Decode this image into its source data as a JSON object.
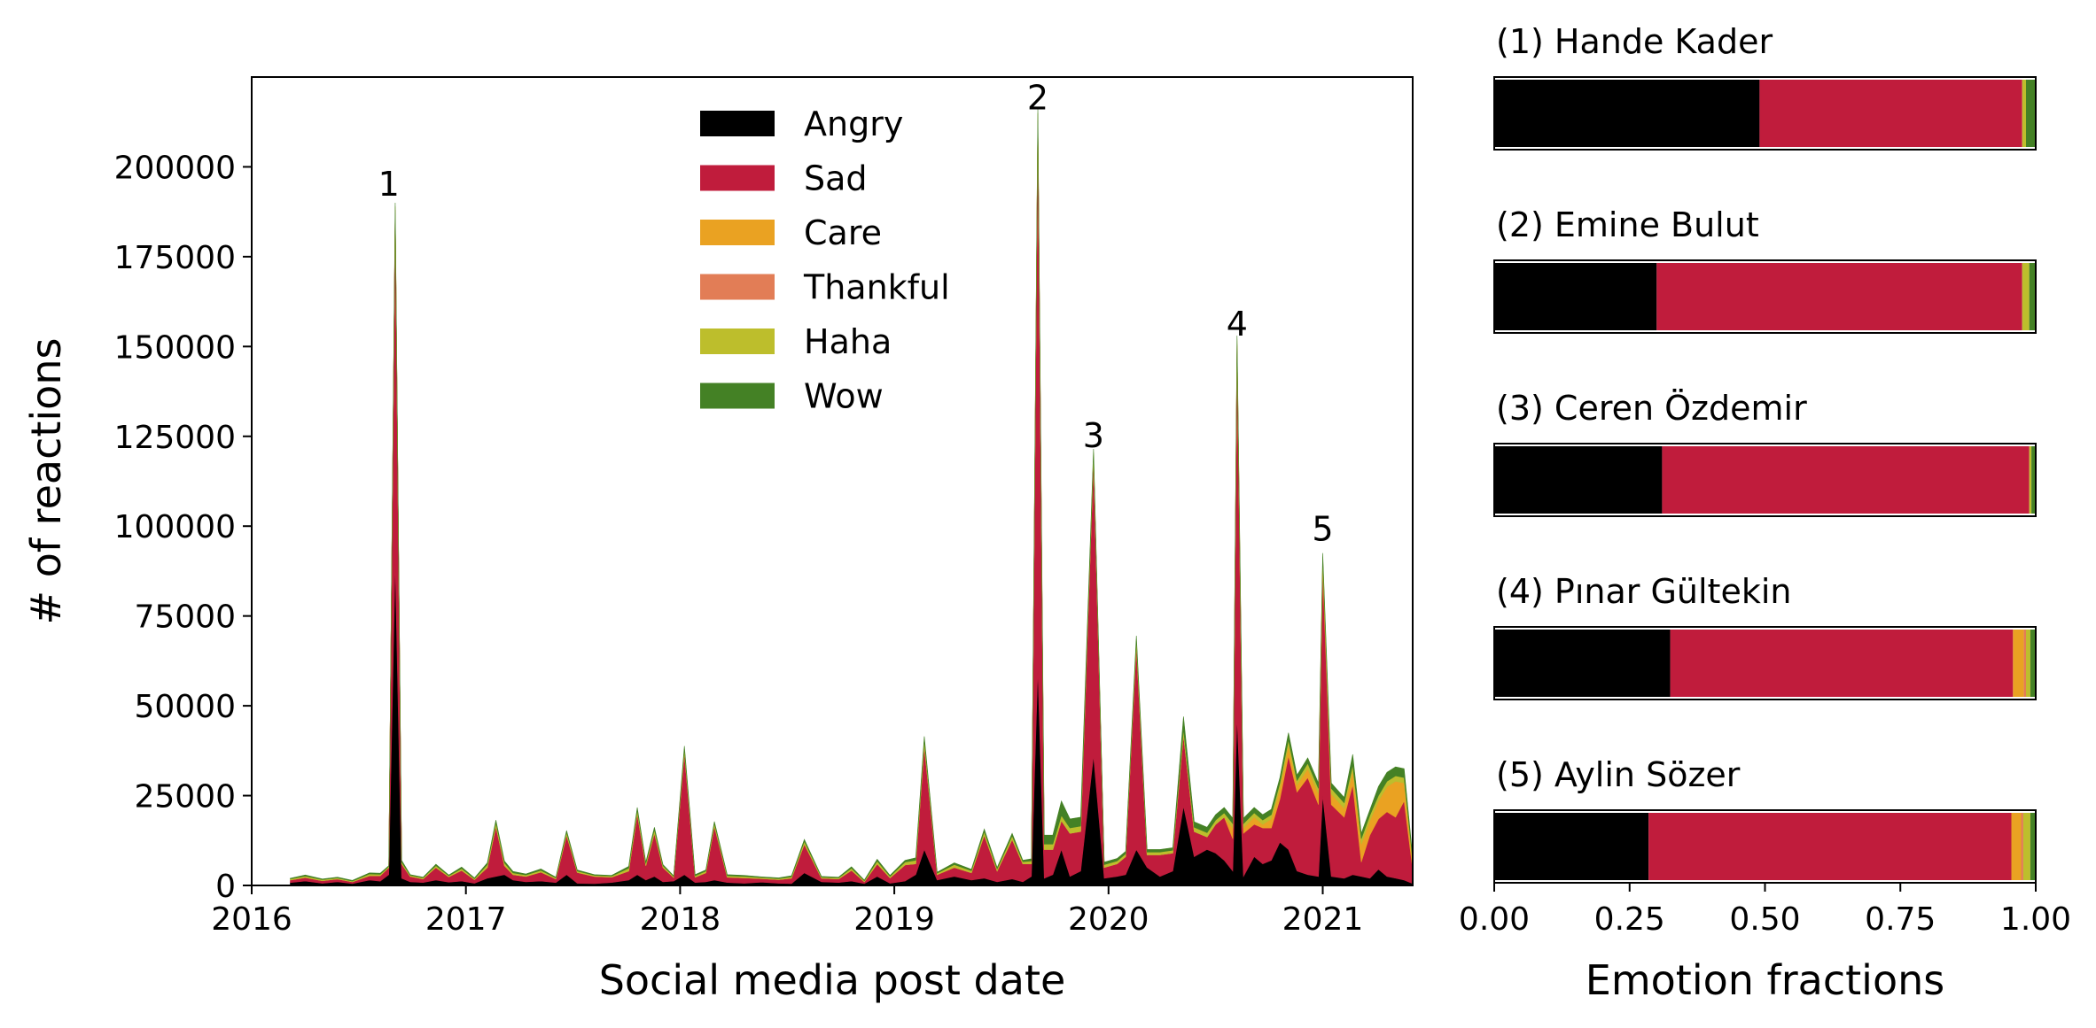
{
  "colors": {
    "Angry": "#000000",
    "Sad": "#c01c3c",
    "Care": "#eaa222",
    "Thankful": "#e27d56",
    "Haha": "#bdbe2c",
    "Wow": "#448125"
  },
  "chart_data": [
    {
      "type": "area",
      "stacked": true,
      "xlabel": "Social media post date",
      "ylabel": "# of reactions",
      "xlim": [
        2016.0,
        2021.42
      ],
      "ylim": [
        0,
        225000
      ],
      "xticks": [
        2016,
        2017,
        2018,
        2019,
        2020,
        2021
      ],
      "xtick_labels": [
        "2016",
        "2017",
        "2018",
        "2019",
        "2020",
        "2021"
      ],
      "yticks": [
        0,
        25000,
        50000,
        75000,
        100000,
        125000,
        150000,
        175000,
        200000
      ],
      "ytick_labels": [
        "0",
        "25000",
        "50000",
        "75000",
        "100000",
        "125000",
        "150000",
        "175000",
        "200000"
      ],
      "legend_position": "upper center",
      "series_order": [
        "Angry",
        "Sad",
        "Care",
        "Thankful",
        "Haha",
        "Wow"
      ],
      "x": [
        2016.18,
        2016.25,
        2016.33,
        2016.4,
        2016.47,
        2016.55,
        2016.6,
        2016.64,
        2016.67,
        2016.7,
        2016.74,
        2016.8,
        2016.86,
        2016.92,
        2016.98,
        2017.04,
        2017.1,
        2017.14,
        2017.18,
        2017.22,
        2017.28,
        2017.35,
        2017.42,
        2017.47,
        2017.52,
        2017.6,
        2017.68,
        2017.76,
        2017.8,
        2017.84,
        2017.88,
        2017.92,
        2017.97,
        2018.02,
        2018.07,
        2018.12,
        2018.16,
        2018.22,
        2018.3,
        2018.38,
        2018.46,
        2018.52,
        2018.58,
        2018.66,
        2018.74,
        2018.8,
        2018.86,
        2018.92,
        2018.98,
        2019.05,
        2019.1,
        2019.14,
        2019.2,
        2019.28,
        2019.36,
        2019.42,
        2019.48,
        2019.55,
        2019.6,
        2019.64,
        2019.67,
        2019.7,
        2019.74,
        2019.78,
        2019.82,
        2019.87,
        2019.93,
        2019.98,
        2020.04,
        2020.08,
        2020.13,
        2020.18,
        2020.24,
        2020.3,
        2020.35,
        2020.4,
        2020.46,
        2020.5,
        2020.54,
        2020.58,
        2020.6,
        2020.63,
        2020.68,
        2020.72,
        2020.76,
        2020.8,
        2020.84,
        2020.88,
        2020.93,
        2020.98,
        2021.0,
        2021.04,
        2021.1,
        2021.14,
        2021.18,
        2021.22,
        2021.26,
        2021.3,
        2021.34,
        2021.38,
        2021.42
      ],
      "series": [
        {
          "name": "Angry",
          "values": [
            800,
            1200,
            600,
            1000,
            500,
            1500,
            1200,
            3000,
            90000,
            2000,
            1000,
            800,
            1500,
            900,
            1200,
            600,
            2000,
            2500,
            3000,
            1500,
            1000,
            1200,
            800,
            3000,
            600,
            500,
            800,
            1500,
            3000,
            1500,
            2500,
            1000,
            1200,
            3000,
            800,
            1000,
            1500,
            800,
            600,
            900,
            600,
            500,
            3500,
            1000,
            800,
            1200,
            500,
            2500,
            600,
            1200,
            3000,
            10000,
            1500,
            2500,
            1500,
            2000,
            1000,
            1800,
            1000,
            2500,
            60000,
            2000,
            3000,
            10000,
            2500,
            4000,
            36000,
            2000,
            2500,
            3000,
            10000,
            5000,
            2500,
            4000,
            22000,
            8000,
            10000,
            9000,
            7000,
            4000,
            47000,
            2500,
            8000,
            6000,
            7000,
            12000,
            10000,
            4000,
            3000,
            2500,
            25000,
            2500,
            2000,
            3000,
            2500,
            2000,
            4500,
            2500,
            2000,
            1500,
            500
          ]
        },
        {
          "name": "Sad",
          "values": [
            700,
            1000,
            700,
            800,
            500,
            1200,
            1500,
            2000,
            98000,
            4000,
            1500,
            1000,
            3500,
            1500,
            3000,
            1000,
            3000,
            14000,
            2500,
            1500,
            1500,
            2500,
            1000,
            11000,
            3000,
            2000,
            1500,
            2500,
            17000,
            4000,
            12000,
            4000,
            1000,
            34000,
            1500,
            2500,
            15000,
            1500,
            1500,
            1000,
            1000,
            1500,
            8000,
            1000,
            1000,
            3000,
            500,
            3500,
            1500,
            4500,
            3000,
            29000,
            1500,
            2500,
            2000,
            12000,
            3000,
            11000,
            5000,
            3500,
            153000,
            8000,
            7000,
            8000,
            12000,
            11000,
            83000,
            3000,
            3500,
            5000,
            57000,
            3500,
            6000,
            5000,
            20000,
            7000,
            3500,
            8000,
            12000,
            9000,
            102000,
            12000,
            9000,
            10000,
            9000,
            12000,
            26000,
            22000,
            27000,
            20000,
            63000,
            20000,
            17000,
            25000,
            4000,
            12000,
            14000,
            18000,
            17000,
            22000,
            4000
          ]
        },
        {
          "name": "Care",
          "values": [
            0,
            0,
            0,
            0,
            0,
            0,
            0,
            0,
            0,
            0,
            0,
            0,
            0,
            0,
            0,
            0,
            0,
            0,
            0,
            0,
            0,
            0,
            0,
            0,
            0,
            0,
            0,
            0,
            0,
            0,
            0,
            0,
            0,
            0,
            0,
            0,
            0,
            0,
            0,
            0,
            0,
            0,
            0,
            0,
            0,
            0,
            0,
            0,
            0,
            0,
            0,
            0,
            0,
            0,
            0,
            0,
            0,
            0,
            0,
            0,
            0,
            0,
            0,
            0,
            0,
            0,
            0,
            0,
            0,
            0,
            0,
            0,
            0,
            0,
            0,
            0,
            0,
            0,
            0,
            3000,
            1500,
            1500,
            2000,
            1000,
            2500,
            3000,
            3000,
            2000,
            2500,
            3000,
            2000,
            3000,
            2500,
            4000,
            5000,
            4000,
            5000,
            7000,
            10000,
            5000,
            2000
          ]
        },
        {
          "name": "Thankful",
          "values": [
            0,
            0,
            0,
            0,
            0,
            0,
            0,
            0,
            0,
            0,
            0,
            0,
            0,
            0,
            0,
            0,
            0,
            0,
            0,
            0,
            0,
            0,
            0,
            0,
            0,
            0,
            0,
            0,
            0,
            0,
            0,
            0,
            0,
            0,
            0,
            0,
            0,
            0,
            0,
            0,
            0,
            0,
            0,
            0,
            0,
            0,
            0,
            0,
            0,
            0,
            0,
            0,
            0,
            0,
            0,
            0,
            0,
            0,
            0,
            0,
            0,
            0,
            0,
            0,
            0,
            0,
            0,
            0,
            0,
            0,
            0,
            0,
            0,
            0,
            0,
            0,
            0,
            0,
            0,
            0,
            0,
            0,
            0,
            0,
            0,
            0,
            0,
            0,
            0,
            0,
            0,
            0,
            0,
            0,
            0,
            0,
            0,
            0,
            0,
            0,
            0
          ]
        },
        {
          "name": "Haha",
          "values": [
            300,
            400,
            300,
            300,
            200,
            500,
            400,
            300,
            1000,
            500,
            300,
            300,
            500,
            300,
            500,
            300,
            800,
            1000,
            800,
            500,
            400,
            500,
            300,
            800,
            400,
            300,
            300,
            800,
            1000,
            600,
            1000,
            500,
            300,
            1000,
            400,
            500,
            800,
            400,
            400,
            300,
            300,
            400,
            800,
            300,
            300,
            600,
            300,
            800,
            400,
            800,
            1000,
            1500,
            400,
            800,
            600,
            1000,
            600,
            1000,
            600,
            800,
            2000,
            1500,
            1500,
            1500,
            1500,
            1500,
            1500,
            800,
            800,
            800,
            1500,
            800,
            800,
            800,
            1500,
            1200,
            1200,
            1200,
            1200,
            1200,
            1500,
            1200,
            1200,
            1200,
            1200,
            1500,
            1500,
            1200,
            1500,
            1500,
            1500,
            1500,
            1500,
            1500,
            1500,
            1500,
            1500,
            1500,
            1500,
            1500,
            600
          ]
        },
        {
          "name": "Wow",
          "values": [
            200,
            300,
            200,
            200,
            200,
            300,
            300,
            200,
            1000,
            500,
            200,
            200,
            400,
            200,
            400,
            200,
            500,
            700,
            500,
            400,
            300,
            400,
            200,
            500,
            300,
            200,
            200,
            500,
            700,
            400,
            700,
            300,
            200,
            800,
            300,
            300,
            500,
            300,
            300,
            200,
            200,
            300,
            500,
            200,
            200,
            400,
            200,
            500,
            300,
            500,
            700,
            1000,
            300,
            500,
            400,
            700,
            400,
            700,
            400,
            600,
            1000,
            2500,
            2500,
            4000,
            2500,
            2500,
            1000,
            700,
            700,
            700,
            1000,
            700,
            700,
            700,
            3500,
            1500,
            1500,
            1500,
            1500,
            1500,
            1000,
            1500,
            1500,
            1500,
            1500,
            1500,
            2000,
            1500,
            1500,
            1500,
            1000,
            1500,
            1500,
            3000,
            1500,
            1500,
            2500,
            2500,
            2500,
            2500,
            800
          ]
        }
      ],
      "annotations": [
        {
          "text": "1",
          "x": 2016.64,
          "y": 192000
        },
        {
          "text": "2",
          "x": 2019.67,
          "y": 216000
        },
        {
          "text": "3",
          "x": 2019.93,
          "y": 122000
        },
        {
          "text": "4",
          "x": 2020.6,
          "y": 153000
        },
        {
          "text": "5",
          "x": 2021.0,
          "y": 96000
        }
      ]
    },
    {
      "type": "bar",
      "orientation": "horizontal",
      "stacked": true,
      "xlabel": "Emotion fractions",
      "xlim": [
        0,
        1
      ],
      "xticks": [
        0,
        0.25,
        0.5,
        0.75,
        1.0
      ],
      "xtick_labels": [
        "0.00",
        "0.25",
        "0.50",
        "0.75",
        "1.00"
      ],
      "series_order": [
        "Angry",
        "Sad",
        "Care",
        "Thankful",
        "Haha",
        "Wow"
      ],
      "panels": [
        {
          "title": "(1) Hande Kader",
          "values": {
            "Angry": 0.49,
            "Sad": 0.485,
            "Care": 0.0,
            "Thankful": 0.0,
            "Haha": 0.007,
            "Wow": 0.018
          }
        },
        {
          "title": "(2) Emine Bulut",
          "values": {
            "Angry": 0.3,
            "Sad": 0.675,
            "Care": 0.0,
            "Thankful": 0.0,
            "Haha": 0.013,
            "Wow": 0.012
          }
        },
        {
          "title": "(3) Ceren Özdemir",
          "values": {
            "Angry": 0.31,
            "Sad": 0.678,
            "Care": 0.0,
            "Thankful": 0.0,
            "Haha": 0.004,
            "Wow": 0.008
          }
        },
        {
          "title": "(4) Pınar Gültekin",
          "values": {
            "Angry": 0.325,
            "Sad": 0.633,
            "Care": 0.02,
            "Thankful": 0.004,
            "Haha": 0.008,
            "Wow": 0.01
          }
        },
        {
          "title": "(5) Aylin Sözer",
          "values": {
            "Angry": 0.285,
            "Sad": 0.67,
            "Care": 0.018,
            "Thankful": 0.004,
            "Haha": 0.013,
            "Wow": 0.01
          }
        }
      ]
    }
  ]
}
